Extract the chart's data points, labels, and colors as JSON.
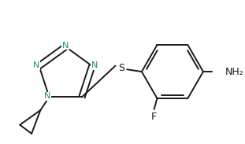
{
  "bg_color": "#ffffff",
  "bond_color": "#1a1a1a",
  "atom_colors": {
    "N": "#1e8a8a",
    "S": "#1a1a1a",
    "F": "#1a1a1a",
    "NH2": "#1a1a1a"
  },
  "figsize": [
    3.11,
    1.83
  ],
  "dpi": 100
}
